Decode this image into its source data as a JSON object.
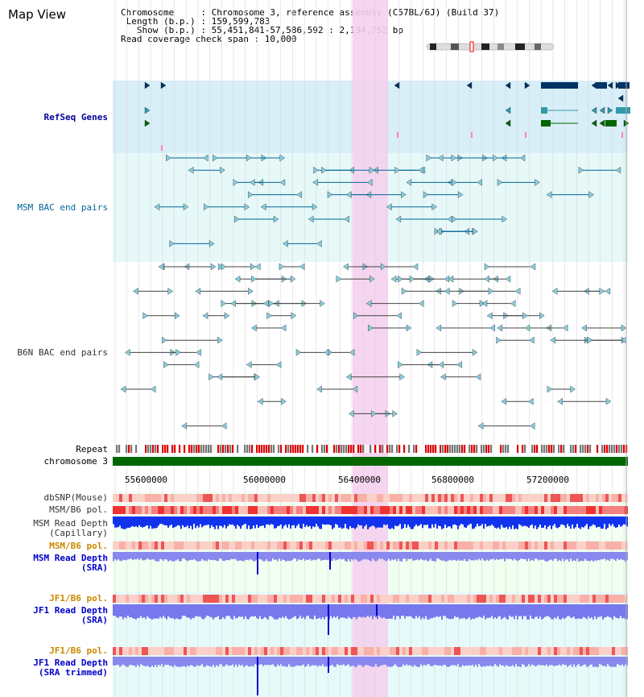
{
  "header": {
    "title": "Map View",
    "info_lines": [
      "Chromosome     : Chromosome 3, reference assembly (C57BL/6J) (Build 37)",
      " Length (b.p.) : 159,599,783",
      "   Show (b.p.) : 55,451,841-57,586,592 : 2,134,752 bp",
      "Read coverage check span : 10,000"
    ]
  },
  "tracks": {
    "refseq": {
      "label": "RefSeq Genes",
      "color": "#000099"
    },
    "msm_bac": {
      "label": "MSM BAC end pairs",
      "color": "#006699"
    },
    "b6n_bac": {
      "label": "B6N BAC end pairs",
      "color": "#333333"
    },
    "repeat": {
      "label": "Repeat"
    },
    "chromosome": {
      "label": "chromosome 3"
    },
    "dbsnp": {
      "label": "dbSNP(Mouse)"
    },
    "msm_b6_pol_cap": {
      "label": "MSM/B6 pol."
    },
    "msm_depth_cap": {
      "label1": "MSM Read Depth",
      "label2": "(Capillary)"
    },
    "msm_b6_pol_sra": {
      "label": "MSM/B6 pol.",
      "color": "#cc8800"
    },
    "msm_depth_sra": {
      "label1": "MSM Read Depth",
      "label2": "(SRA)",
      "color": "#0000cc"
    },
    "jf1_b6_pol_sra": {
      "label": "JF1/B6 pol.",
      "color": "#cc8800"
    },
    "jf1_depth_sra": {
      "label1": "JF1 Read Depth",
      "label2": "(SRA)",
      "color": "#0000cc"
    },
    "jf1_b6_pol_trim": {
      "label": "JF1/B6 pol.",
      "color": "#cc8800"
    },
    "jf1_depth_trim": {
      "label1": "JF1 Read Depth",
      "label2": "(SRA trimmed)",
      "color": "#0000cc"
    }
  },
  "axis": {
    "ticks": [
      "55600000",
      "56000000",
      "56400000",
      "56800000",
      "57200000"
    ]
  },
  "colors": {
    "highlight": "#f5d0ee",
    "refseq_bg": "#d8eef8",
    "bac_bg": "#e6f8f8",
    "grid": "#cccccc",
    "chromosome": "#006600",
    "gene_dark": "#003366",
    "gene_teal": "#3399aa",
    "gene_green": "#006600"
  }
}
